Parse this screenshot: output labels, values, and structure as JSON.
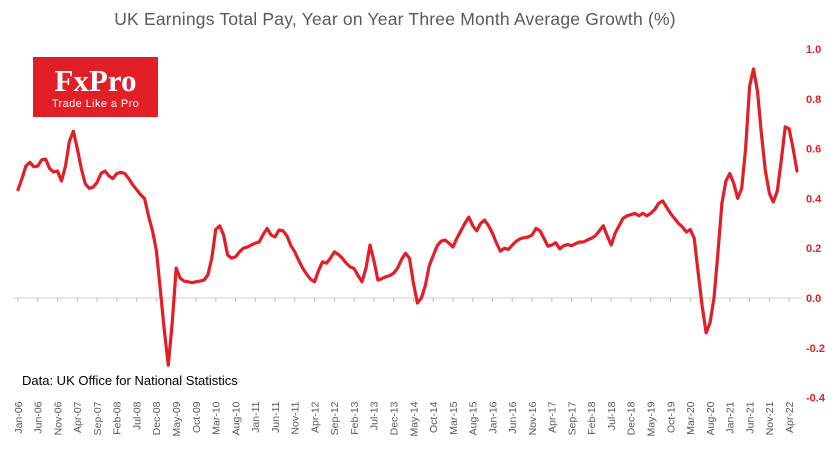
{
  "header": {
    "title": "UK Earnings Total Pay, Year on Year Three Month Average Growth (%)"
  },
  "logo": {
    "brand": "FxPro",
    "tagline": "Trade Like a Pro",
    "bg_color": "#e21e26",
    "text_color": "#ffffff"
  },
  "footnote": {
    "text": "Data: UK Office for National Statistics"
  },
  "chart_data": {
    "type": "line",
    "title": "UK Earnings Total Pay, Year on Year Three Month Average Growth (%)",
    "x_frequency": "monthly",
    "x_tick_interval_months": 5,
    "x_tick_labels": [
      "Jan-06",
      "Jun-06",
      "Nov-06",
      "Apr-07",
      "Sep-07",
      "Feb-08",
      "Jul-08",
      "Dec-08",
      "May-09",
      "Oct-09",
      "Mar-10",
      "Aug-10",
      "Jan-11",
      "Jun-11",
      "Nov-11",
      "Apr-12",
      "Sep-12",
      "Feb-13",
      "Jul-13",
      "Dec-13",
      "May-14",
      "Oct-14",
      "Mar-15",
      "Aug-15",
      "Jan-16",
      "Jun-16",
      "Nov-16",
      "Apr-17",
      "Sep-17",
      "Feb-18",
      "Jul-18",
      "Dec-18",
      "May-19",
      "Oct-19",
      "Mar-20",
      "Aug-20",
      "Jan-21",
      "Jun-21",
      "Nov-21",
      "Apr-22"
    ],
    "y_ticks": [
      "1.0",
      "0.8",
      "0.6",
      "0.4",
      "0.2",
      "0.0",
      "-0.2",
      "-0.4"
    ],
    "ylim": [
      -0.4,
      1.0
    ],
    "series_name": "UK earnings total pay YoY 3-month average growth",
    "values": [
      0.435,
      0.48,
      0.53,
      0.545,
      0.527,
      0.53,
      0.555,
      0.558,
      0.52,
      0.506,
      0.51,
      0.47,
      0.53,
      0.63,
      0.67,
      0.6,
      0.52,
      0.46,
      0.44,
      0.445,
      0.465,
      0.5,
      0.51,
      0.49,
      0.48,
      0.5,
      0.505,
      0.5,
      0.48,
      0.455,
      0.435,
      0.415,
      0.4,
      0.33,
      0.27,
      0.19,
      0.03,
      -0.13,
      -0.27,
      -0.1,
      0.12,
      0.08,
      0.068,
      0.065,
      0.062,
      0.065,
      0.068,
      0.072,
      0.092,
      0.16,
      0.275,
      0.29,
      0.253,
      0.173,
      0.16,
      0.165,
      0.185,
      0.2,
      0.205,
      0.213,
      0.22,
      0.225,
      0.255,
      0.28,
      0.253,
      0.245,
      0.273,
      0.27,
      0.25,
      0.21,
      0.185,
      0.15,
      0.12,
      0.095,
      0.075,
      0.065,
      0.11,
      0.145,
      0.14,
      0.16,
      0.185,
      0.175,
      0.16,
      0.14,
      0.125,
      0.118,
      0.09,
      0.065,
      0.12,
      0.213,
      0.15,
      0.072,
      0.078,
      0.085,
      0.09,
      0.1,
      0.12,
      0.155,
      0.18,
      0.16,
      0.06,
      -0.02,
      0.0,
      0.05,
      0.13,
      0.17,
      0.21,
      0.228,
      0.233,
      0.22,
      0.205,
      0.24,
      0.27,
      0.3,
      0.325,
      0.29,
      0.27,
      0.3,
      0.313,
      0.29,
      0.26,
      0.22,
      0.188,
      0.2,
      0.195,
      0.213,
      0.228,
      0.238,
      0.242,
      0.245,
      0.253,
      0.28,
      0.27,
      0.24,
      0.208,
      0.213,
      0.222,
      0.197,
      0.21,
      0.215,
      0.21,
      0.218,
      0.225,
      0.225,
      0.233,
      0.24,
      0.25,
      0.27,
      0.29,
      0.25,
      0.213,
      0.26,
      0.29,
      0.32,
      0.33,
      0.335,
      0.34,
      0.33,
      0.34,
      0.33,
      0.34,
      0.355,
      0.38,
      0.39,
      0.365,
      0.34,
      0.32,
      0.3,
      0.285,
      0.265,
      0.275,
      0.24,
      0.1,
      -0.03,
      -0.14,
      -0.1,
      0.0,
      0.18,
      0.38,
      0.47,
      0.5,
      0.46,
      0.4,
      0.44,
      0.6,
      0.85,
      0.92,
      0.83,
      0.66,
      0.51,
      0.42,
      0.386,
      0.43,
      0.55,
      0.687,
      0.68,
      0.6,
      0.51
    ],
    "line_color": "#e21e26",
    "x_tick_label_color": "#595959",
    "y_tick_label_color": "#e21e26",
    "axis_line_color": "#d9d9d9",
    "grid": "zero-axis-only",
    "legend": "none"
  }
}
